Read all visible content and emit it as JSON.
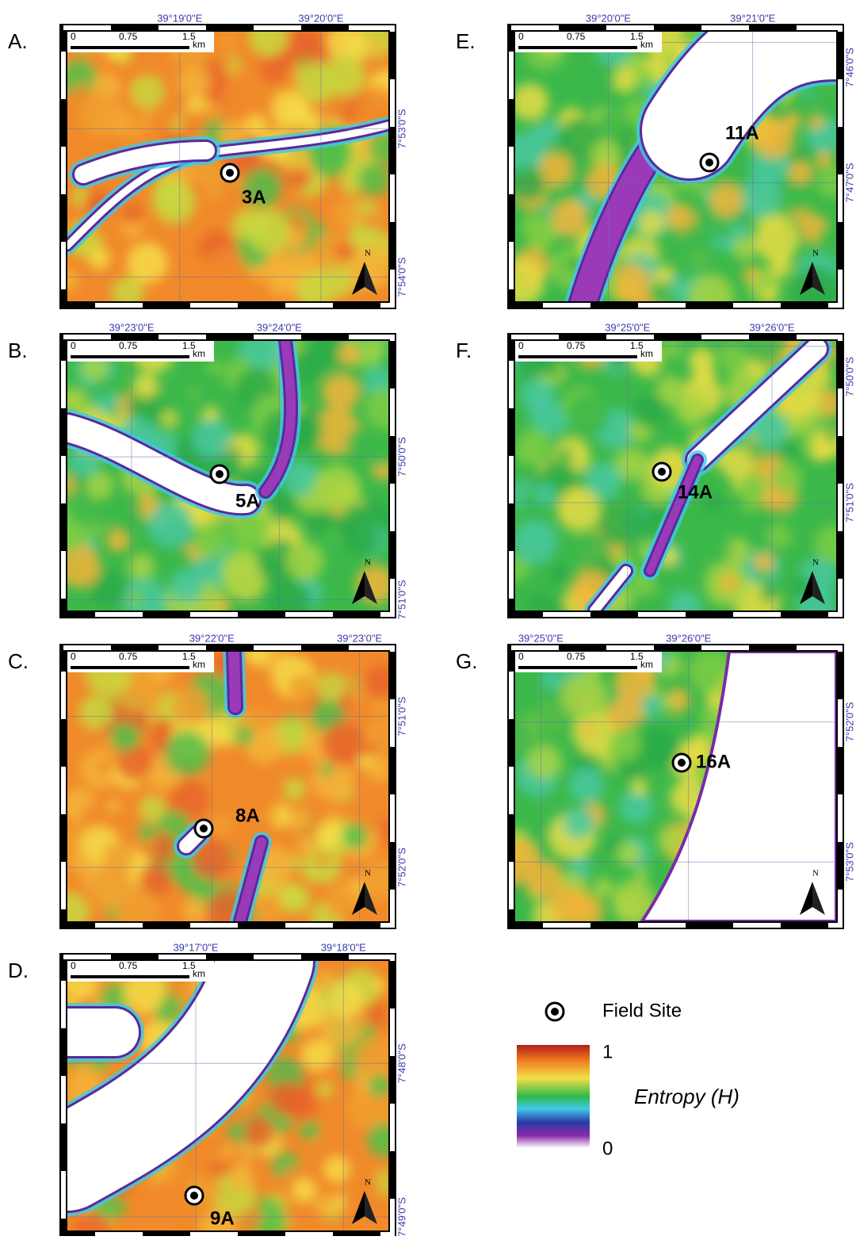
{
  "panels": [
    {
      "letter": "A.",
      "longitudes": [
        "39°19'0\"E",
        "39°20'0\"E"
      ],
      "latitudes": [
        "7°53'0\"S",
        "7°54'0\"S"
      ],
      "site": "3A"
    },
    {
      "letter": "B.",
      "longitudes": [
        "39°23'0\"E",
        "39°24'0\"E"
      ],
      "latitudes": [
        "7°50'0\"S",
        "7°51'0\"S"
      ],
      "site": "5A"
    },
    {
      "letter": "C.",
      "longitudes": [
        "39°22'0\"E",
        "39°23'0\"E"
      ],
      "latitudes": [
        "7°51'0\"S",
        "7°52'0\"S"
      ],
      "site": "8A"
    },
    {
      "letter": "D.",
      "longitudes": [
        "39°17'0\"E",
        "39°18'0\"E"
      ],
      "latitudes": [
        "7°48'0\"S",
        "7°49'0\"S"
      ],
      "site": "9A"
    },
    {
      "letter": "E.",
      "longitudes": [
        "39°20'0\"E",
        "39°21'0\"E"
      ],
      "latitudes": [
        "7°46'0\"S",
        "7°47'0\"S"
      ],
      "site": "11A"
    },
    {
      "letter": "F.",
      "longitudes": [
        "39°25'0\"E",
        "39°26'0\"E"
      ],
      "latitudes": [
        "7°50'0\"S",
        "7°51'0\"S"
      ],
      "site": "14A"
    },
    {
      "letter": "G.",
      "longitudes": [
        "39°25'0\"E",
        "39°26'0\"E"
      ],
      "latitudes": [
        "7°52'0\"S",
        "7°53'0\"S"
      ],
      "site": "16A"
    }
  ],
  "scale_bar": {
    "labels": [
      "0",
      "0.75",
      "1.5"
    ],
    "unit": "km"
  },
  "north_arrow": "N",
  "legend": {
    "field_site": "Field Site",
    "colorbar": {
      "max": 1,
      "min": 0,
      "title": "Entropy (H)"
    }
  }
}
